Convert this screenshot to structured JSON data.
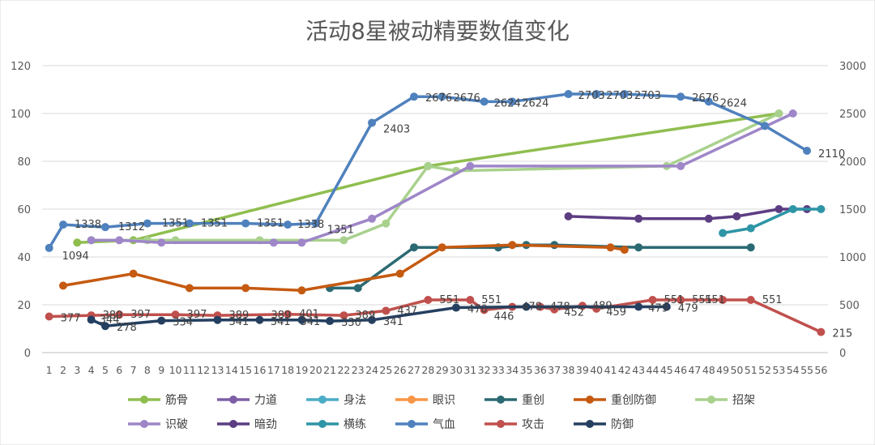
{
  "chart_data": {
    "type": "line",
    "title": "活动8星被动精要数值变化",
    "x": [
      "1",
      "2",
      "3",
      "4",
      "5",
      "6",
      "7",
      "8",
      "9",
      "10",
      "11",
      "12",
      "13",
      "14",
      "15",
      "16",
      "17",
      "18",
      "19",
      "20",
      "21",
      "22",
      "23",
      "24",
      "25",
      "26",
      "27",
      "28",
      "29",
      "30",
      "31",
      "32",
      "33",
      "34",
      "35",
      "36",
      "37",
      "38",
      "39",
      "40",
      "41",
      "42",
      "43",
      "44",
      "45",
      "46",
      "47",
      "48",
      "49",
      "50",
      "51",
      "52",
      "53",
      "54",
      "55",
      "56"
    ],
    "ylim_left": [
      0,
      120
    ],
    "yticks_left": [
      "0",
      "20",
      "40",
      "60",
      "80",
      "100",
      "120"
    ],
    "ylim_right": [
      0,
      3000
    ],
    "yticks_right": [
      "0",
      "500",
      "1000",
      "1500",
      "2000",
      "2500",
      "3000"
    ],
    "grid": true,
    "legend_position": "bottom",
    "series": [
      {
        "name": "筋骨",
        "axis": "left",
        "color": "#8fbe4f",
        "points": [
          [
            3,
            46
          ],
          [
            7,
            47
          ],
          [
            28,
            78
          ],
          [
            53,
            100
          ]
        ],
        "labels": []
      },
      {
        "name": "力道",
        "axis": "left",
        "color": "#7e5ea6",
        "points": [],
        "labels": []
      },
      {
        "name": "身法",
        "axis": "left",
        "color": "#4bacc6",
        "points": [],
        "labels": []
      },
      {
        "name": "眼识",
        "axis": "left",
        "color": "#f79646",
        "points": [],
        "labels": []
      },
      {
        "name": "重创",
        "axis": "left",
        "color": "#2b6a73",
        "points": [
          [
            21,
            27
          ],
          [
            23,
            27
          ],
          [
            27,
            44
          ],
          [
            33,
            44
          ],
          [
            35,
            45
          ],
          [
            37,
            45
          ],
          [
            43,
            44
          ],
          [
            51,
            44
          ]
        ],
        "labels": []
      },
      {
        "name": "重创防御",
        "axis": "left",
        "color": "#c55a11",
        "points": [
          [
            2,
            28
          ],
          [
            7,
            33
          ],
          [
            11,
            27
          ],
          [
            15,
            27
          ],
          [
            19,
            26
          ],
          [
            26,
            33
          ],
          [
            29,
            44
          ],
          [
            34,
            45
          ],
          [
            41,
            44
          ],
          [
            42,
            43
          ]
        ],
        "labels": []
      },
      {
        "name": "招架",
        "axis": "left",
        "color": "#a9d18e",
        "points": [
          [
            4,
            47
          ],
          [
            8,
            47
          ],
          [
            10,
            47
          ],
          [
            16,
            47
          ],
          [
            22,
            47
          ],
          [
            25,
            54
          ],
          [
            28,
            78
          ],
          [
            30,
            76
          ],
          [
            45,
            78
          ],
          [
            53,
            100
          ]
        ],
        "labels": []
      },
      {
        "name": "识破",
        "axis": "left",
        "color": "#9e86c8",
        "points": [
          [
            4,
            47
          ],
          [
            6,
            47
          ],
          [
            9,
            46
          ],
          [
            17,
            46
          ],
          [
            19,
            46
          ],
          [
            24,
            56
          ],
          [
            31,
            78
          ],
          [
            46,
            78
          ],
          [
            54,
            100
          ]
        ],
        "labels": []
      },
      {
        "name": "暗劲",
        "axis": "left",
        "color": "#5c3d82",
        "points": [
          [
            38,
            57
          ],
          [
            43,
            56
          ],
          [
            48,
            56
          ],
          [
            50,
            57
          ],
          [
            53,
            60
          ],
          [
            55,
            60
          ]
        ],
        "labels": []
      },
      {
        "name": "横练",
        "axis": "left",
        "color": "#2e95a6",
        "points": [
          [
            49,
            50
          ],
          [
            51,
            52
          ],
          [
            54,
            60
          ],
          [
            56,
            60
          ]
        ],
        "labels": []
      },
      {
        "name": "气血",
        "axis": "right",
        "color": "#4f81bd",
        "points": [
          [
            1,
            1094
          ],
          [
            2,
            1338
          ],
          [
            5,
            1312
          ],
          [
            8,
            1351
          ],
          [
            11,
            1351
          ],
          [
            15,
            1351
          ],
          [
            18,
            1338
          ],
          [
            20,
            1351
          ],
          [
            24,
            2403
          ],
          [
            27,
            2676
          ],
          [
            29,
            2676
          ],
          [
            32,
            2624
          ],
          [
            34,
            2624
          ],
          [
            38,
            2703
          ],
          [
            40,
            2703
          ],
          [
            42,
            2703
          ],
          [
            46,
            2676
          ],
          [
            48,
            2624
          ],
          [
            52,
            2370
          ],
          [
            55,
            2110
          ]
        ],
        "labels": [
          {
            "text": "1094",
            "x": 1,
            "v": 1094,
            "dx": 16,
            "dy": 14
          },
          {
            "text": "1338",
            "x": 2,
            "v": 1338,
            "dx": 14,
            "dy": 4
          },
          {
            "text": "1312",
            "x": 5,
            "v": 1312,
            "dx": 16,
            "dy": 4
          },
          {
            "text": "1351",
            "x": 8,
            "v": 1351,
            "dx": 18,
            "dy": 4
          },
          {
            "text": "1351",
            "x": 11,
            "v": 1351,
            "dx": 14,
            "dy": 4
          },
          {
            "text": "1351",
            "x": 15,
            "v": 1351,
            "dx": 14,
            "dy": 4
          },
          {
            "text": "1338",
            "x": 18,
            "v": 1338,
            "dx": 12,
            "dy": 4
          },
          {
            "text": "1351",
            "x": 20,
            "v": 1351,
            "dx": 14,
            "dy": 12
          },
          {
            "text": "2403",
            "x": 24,
            "v": 2403,
            "dx": 14,
            "dy": 12
          },
          {
            "text": "2676",
            "x": 27,
            "v": 2676,
            "dx": 14,
            "dy": 6
          },
          {
            "text": "2676",
            "x": 29,
            "v": 2676,
            "dx": 14,
            "dy": 6
          },
          {
            "text": "2624",
            "x": 32,
            "v": 2624,
            "dx": 12,
            "dy": 6
          },
          {
            "text": "2624",
            "x": 34,
            "v": 2624,
            "dx": 12,
            "dy": 6
          },
          {
            "text": "2703",
            "x": 38,
            "v": 2703,
            "dx": 12,
            "dy": 6
          },
          {
            "text": "2703",
            "x": 40,
            "v": 2703,
            "dx": 12,
            "dy": 6
          },
          {
            "text": "2703",
            "x": 42,
            "v": 2703,
            "dx": 12,
            "dy": 6
          },
          {
            "text": "2676",
            "x": 46,
            "v": 2676,
            "dx": 14,
            "dy": 6
          },
          {
            "text": "2624",
            "x": 48,
            "v": 2624,
            "dx": 14,
            "dy": 6
          },
          {
            "text": "2110",
            "x": 55,
            "v": 2110,
            "dx": 14,
            "dy": 8
          }
        ]
      },
      {
        "name": "攻击",
        "axis": "right",
        "color": "#c0504d",
        "points": [
          [
            1,
            377
          ],
          [
            4,
            389
          ],
          [
            6,
            397
          ],
          [
            10,
            397
          ],
          [
            13,
            389
          ],
          [
            18,
            401
          ],
          [
            22,
            389
          ],
          [
            25,
            437
          ],
          [
            28,
            551
          ],
          [
            31,
            551
          ],
          [
            32,
            446
          ],
          [
            34,
            478
          ],
          [
            36,
            478
          ],
          [
            37,
            452
          ],
          [
            39,
            489
          ],
          [
            40,
            459
          ],
          [
            44,
            551
          ],
          [
            46,
            551
          ],
          [
            49,
            551
          ],
          [
            51,
            551
          ],
          [
            56,
            215
          ]
        ],
        "labels": [
          {
            "text": "377",
            "x": 1,
            "v": 377,
            "dx": 14,
            "dy": 6
          },
          {
            "text": "389",
            "x": 4,
            "v": 389,
            "dx": 14,
            "dy": 4
          },
          {
            "text": "397",
            "x": 6,
            "v": 397,
            "dx": 14,
            "dy": 4
          },
          {
            "text": "397",
            "x": 10,
            "v": 397,
            "dx": 14,
            "dy": 4
          },
          {
            "text": "389",
            "x": 13,
            "v": 389,
            "dx": 14,
            "dy": 4
          },
          {
            "text": "389",
            "x": 16,
            "v": 389,
            "dx": 14,
            "dy": 4
          },
          {
            "text": "401",
            "x": 18,
            "v": 401,
            "dx": 14,
            "dy": 4
          },
          {
            "text": "389",
            "x": 22,
            "v": 389,
            "dx": 14,
            "dy": 4
          },
          {
            "text": "437",
            "x": 25,
            "v": 437,
            "dx": 14,
            "dy": 4
          },
          {
            "text": "551",
            "x": 28,
            "v": 551,
            "dx": 14,
            "dy": 4
          },
          {
            "text": "551",
            "x": 31,
            "v": 551,
            "dx": 14,
            "dy": 4
          },
          {
            "text": "446",
            "x": 32,
            "v": 446,
            "dx": 12,
            "dy": 12
          },
          {
            "text": "478",
            "x": 34,
            "v": 478,
            "dx": 12,
            "dy": 4
          },
          {
            "text": "478",
            "x": 36,
            "v": 478,
            "dx": 12,
            "dy": 4
          },
          {
            "text": "452",
            "x": 37,
            "v": 452,
            "dx": 12,
            "dy": 8
          },
          {
            "text": "489",
            "x": 39,
            "v": 489,
            "dx": 12,
            "dy": 4
          },
          {
            "text": "459",
            "x": 40,
            "v": 459,
            "dx": 12,
            "dy": 8
          },
          {
            "text": "551",
            "x": 44,
            "v": 551,
            "dx": 14,
            "dy": 4
          },
          {
            "text": "551",
            "x": 46,
            "v": 551,
            "dx": 14,
            "dy": 4
          },
          {
            "text": "551",
            "x": 49,
            "v": 551,
            "dx": -22,
            "dy": 4
          },
          {
            "text": "551",
            "x": 51,
            "v": 551,
            "dx": 14,
            "dy": 4
          },
          {
            "text": "215",
            "x": 56,
            "v": 215,
            "dx": 14,
            "dy": 6
          }
        ]
      },
      {
        "name": "防御",
        "axis": "right",
        "color": "#243f60",
        "points": [
          [
            4,
            344
          ],
          [
            5,
            278
          ],
          [
            9,
            334
          ],
          [
            13,
            341
          ],
          [
            16,
            341
          ],
          [
            19,
            341
          ],
          [
            21,
            330
          ],
          [
            24,
            341
          ],
          [
            30,
            470
          ],
          [
            35,
            479
          ],
          [
            43,
            479
          ],
          [
            45,
            479
          ]
        ],
        "labels": [
          {
            "text": "344",
            "x": 4,
            "v": 344,
            "dx": 10,
            "dy": 4
          },
          {
            "text": "278",
            "x": 5,
            "v": 278,
            "dx": 14,
            "dy": 6
          },
          {
            "text": "334",
            "x": 9,
            "v": 334,
            "dx": 14,
            "dy": 6
          },
          {
            "text": "341",
            "x": 13,
            "v": 341,
            "dx": 14,
            "dy": 6
          },
          {
            "text": "341",
            "x": 17,
            "v": 341,
            "dx": -4,
            "dy": 6
          },
          {
            "text": "341",
            "x": 19,
            "v": 341,
            "dx": -2,
            "dy": 6
          },
          {
            "text": "330",
            "x": 21,
            "v": 330,
            "dx": 14,
            "dy": 6
          },
          {
            "text": "341",
            "x": 24,
            "v": 341,
            "dx": 14,
            "dy": 6
          },
          {
            "text": "470",
            "x": 30,
            "v": 470,
            "dx": 14,
            "dy": 6
          },
          {
            "text": "479",
            "x": 43,
            "v": 479,
            "dx": 12,
            "dy": 6
          },
          {
            "text": "479",
            "x": 45,
            "v": 479,
            "dx": 14,
            "dy": 6
          }
        ]
      }
    ]
  }
}
